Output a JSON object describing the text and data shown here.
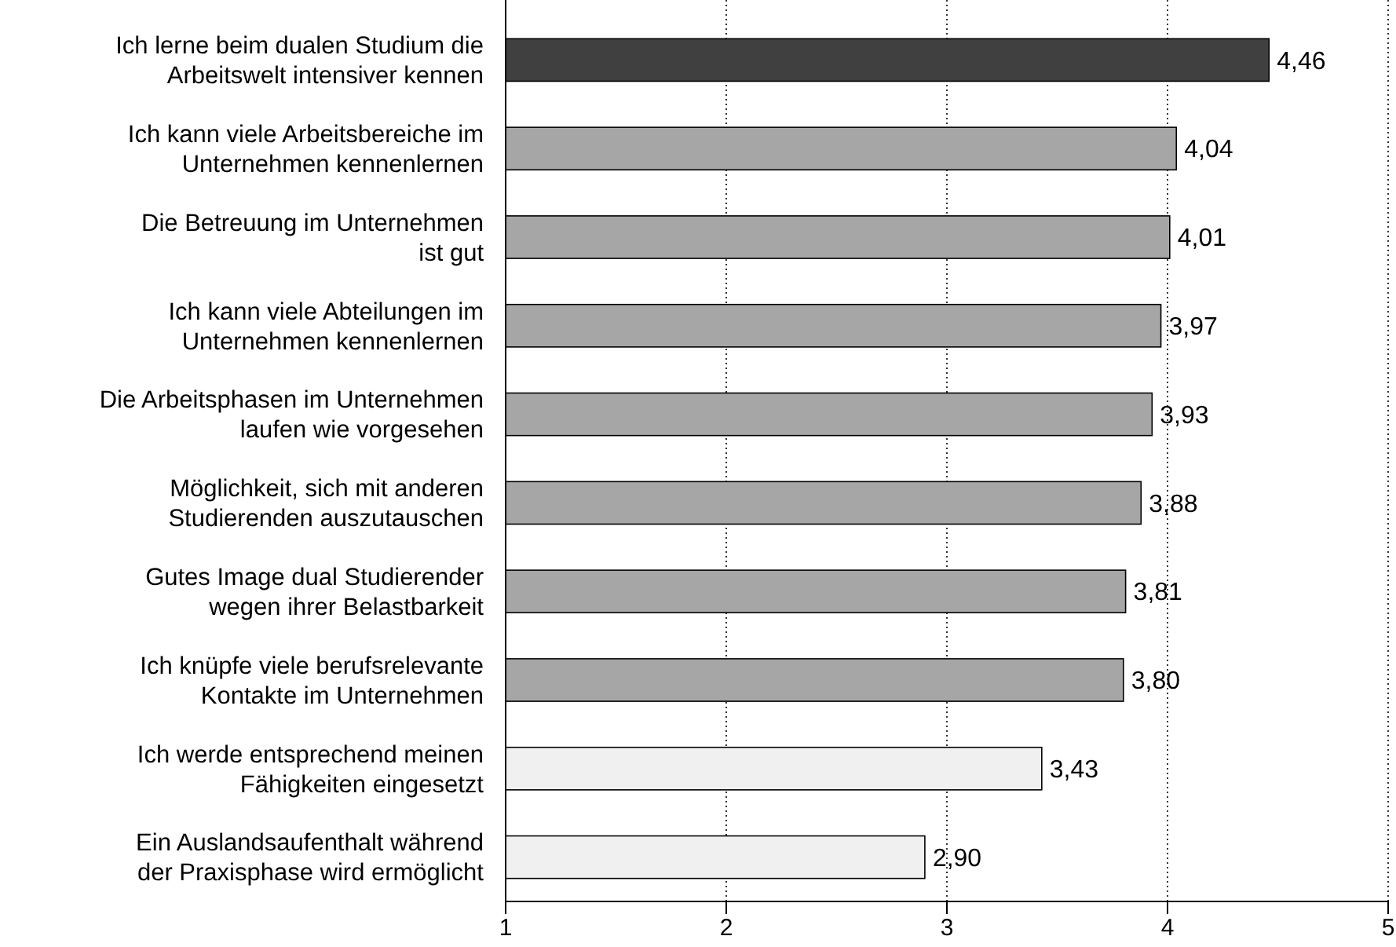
{
  "chart_data": {
    "type": "bar",
    "orientation": "horizontal",
    "categories": [
      "Ich lerne beim dualen Studium die\nArbeitswelt intensiver kennen",
      "Ich kann viele Arbeitsbereiche im\nUnternehmen kennenlernen",
      "Die Betreuung im Unternehmen\nist gut",
      "Ich kann viele Abteilungen im\nUnternehmen kennenlernen",
      "Die Arbeitsphasen im Unternehmen\nlaufen wie vorgesehen",
      "Möglichkeit, sich mit anderen\nStudierenden auszutauschen",
      "Gutes Image dual Studierender\nwegen ihrer Belastbarkeit",
      "Ich knüpfe viele berufsrelevante\nKontakte im Unternehmen",
      "Ich werde entsprechend meinen\nFähigkeiten eingesetzt",
      "Ein Auslandsaufenthalt während\nder Praxisphase wird ermöglicht"
    ],
    "values": [
      4.46,
      4.04,
      4.01,
      3.97,
      3.93,
      3.88,
      3.81,
      3.8,
      3.43,
      2.9
    ],
    "value_labels": [
      "4,46",
      "4,04",
      "4,01",
      "3,97",
      "3,93",
      "3,88",
      "3,81",
      "3,80",
      "3,43",
      "2,90"
    ],
    "colors": [
      "#404040",
      "#a6a6a6",
      "#a6a6a6",
      "#a6a6a6",
      "#a6a6a6",
      "#a6a6a6",
      "#a6a6a6",
      "#a6a6a6",
      "#f0f0f0",
      "#f0f0f0"
    ],
    "xlim": [
      1,
      5
    ],
    "xticks": [
      1,
      2,
      3,
      4,
      5
    ],
    "grid": "x"
  }
}
